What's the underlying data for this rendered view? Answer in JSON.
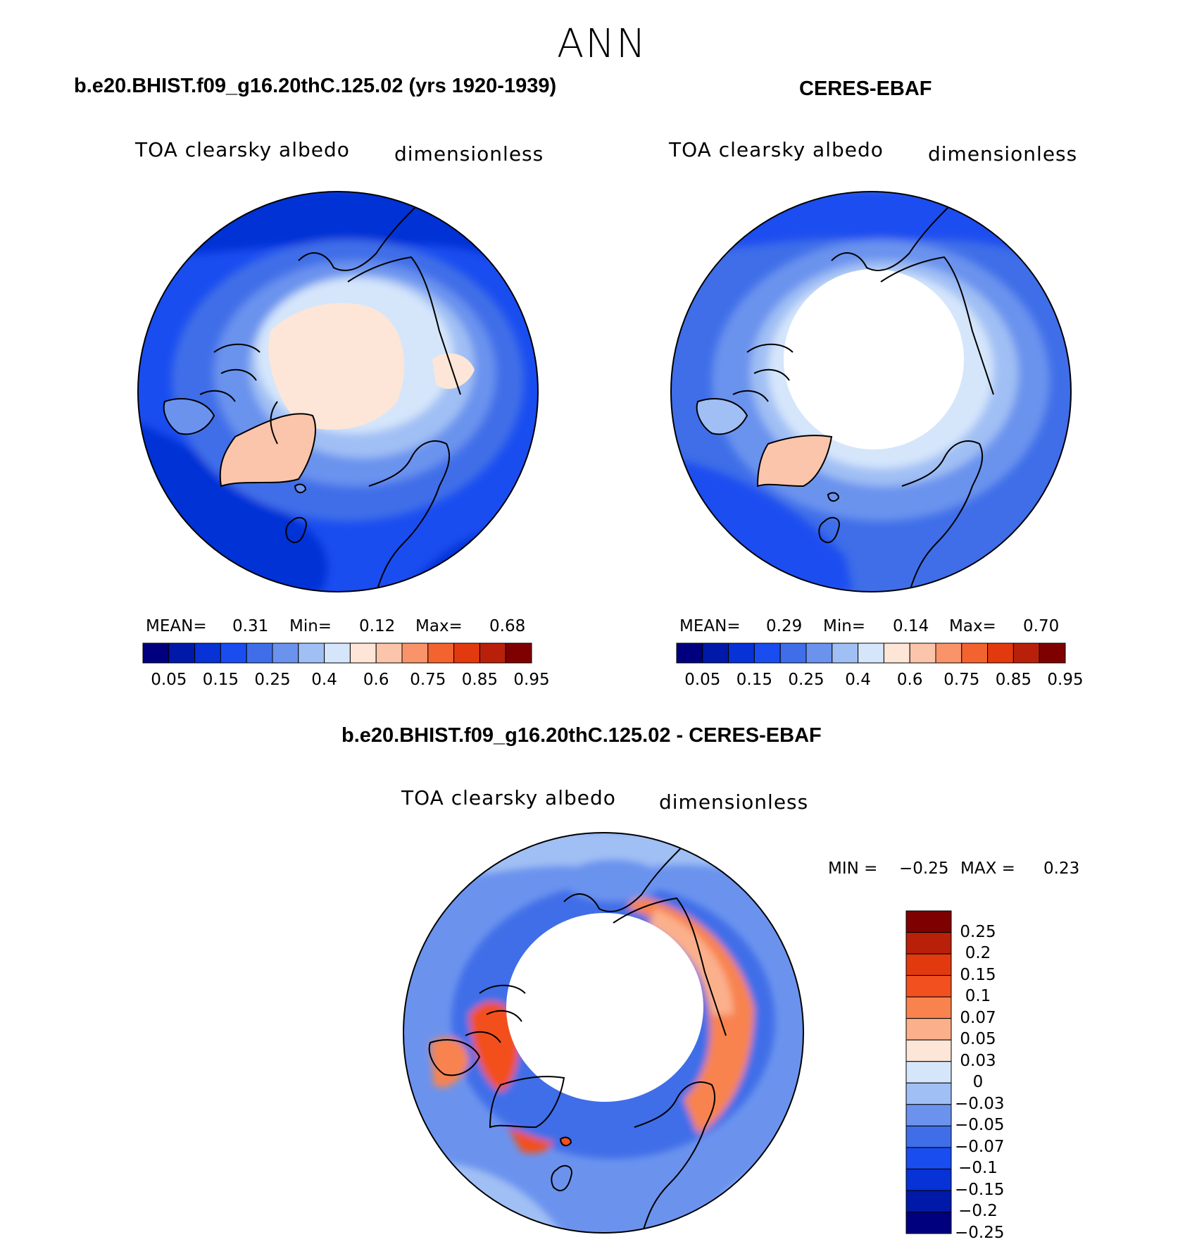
{
  "figure_title": "ANN",
  "panels": [
    {
      "id": "model",
      "title": "b.e20.BHIST.f09_g16.20thC.125.02 (yrs 1920-1939)",
      "variable": "TOA clearsky albedo",
      "units": "dimensionless",
      "mean_label": "MEAN=",
      "mean_value": "0.31",
      "min_label": "Min=",
      "min_value": "0.12",
      "max_label": "Max=",
      "max_value": "0.68"
    },
    {
      "id": "obs",
      "title": "CERES-EBAF",
      "variable": "TOA clearsky albedo",
      "units": "dimensionless",
      "mean_label": "MEAN=",
      "mean_value": "0.29",
      "min_label": "Min=",
      "min_value": "0.14",
      "max_label": "Max=",
      "max_value": "0.70"
    },
    {
      "id": "diff",
      "title": "b.e20.BHIST.f09_g16.20thC.125.02 - CERES-EBAF",
      "variable": "TOA clearsky albedo",
      "units": "dimensionless",
      "min_label": "MIN =",
      "min_value": "−0.25",
      "max_label": "MAX =",
      "max_value": "0.23"
    }
  ],
  "albedo_colorbar": {
    "colors": [
      "#00007f",
      "#0019a8",
      "#0632d6",
      "#1a4df0",
      "#3f6ee8",
      "#6b93ee",
      "#a0bff4",
      "#d5e6fb",
      "#fde6d7",
      "#fbc5ab",
      "#f8936a",
      "#f3632f",
      "#e23a0e",
      "#b8200a",
      "#7f0000"
    ],
    "tick_labels": [
      "0.05",
      "0.15",
      "0.25",
      "0.4",
      "0.6",
      "0.75",
      "0.85",
      "0.95"
    ]
  },
  "diff_colorbar": {
    "colors_top_to_bottom": [
      "#7f0000",
      "#b8200a",
      "#e23a0e",
      "#f3501f",
      "#f8834f",
      "#fbb08c",
      "#fde6d7",
      "#d5e6fb",
      "#a0bff4",
      "#6b93ee",
      "#3f6ee8",
      "#1a4df0",
      "#0632d6",
      "#0019a8",
      "#00007f"
    ],
    "tick_labels": [
      "0.25",
      "0.2",
      "0.15",
      "0.1",
      "0.07",
      "0.05",
      "0.03",
      "0",
      "−0.03",
      "−0.05",
      "−0.07",
      "−0.1",
      "−0.15",
      "−0.2",
      "−0.25"
    ]
  }
}
